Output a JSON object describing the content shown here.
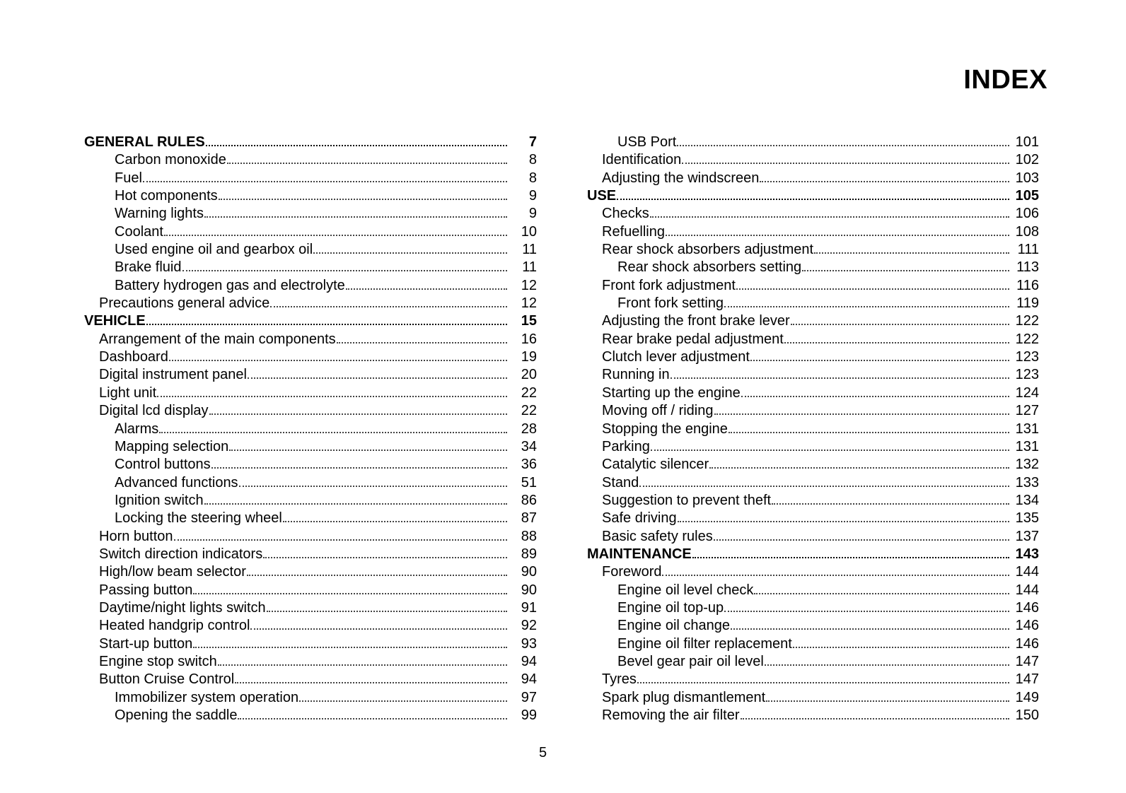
{
  "title": "INDEX",
  "page_number": "5",
  "left": [
    {
      "level": 0,
      "label": "GENERAL RULES",
      "page": "7"
    },
    {
      "level": 2,
      "label": "Carbon monoxide",
      "page": "8"
    },
    {
      "level": 2,
      "label": "Fuel",
      "page": "8"
    },
    {
      "level": 2,
      "label": "Hot components",
      "page": "9"
    },
    {
      "level": 2,
      "label": "Warning lights",
      "page": "9"
    },
    {
      "level": 2,
      "label": "Coolant",
      "page": "10"
    },
    {
      "level": 2,
      "label": "Used engine oil and gearbox oil",
      "page": "11"
    },
    {
      "level": 2,
      "label": "Brake fluid",
      "page": "11"
    },
    {
      "level": 2,
      "label": "Battery hydrogen gas and electrolyte",
      "page": "12"
    },
    {
      "level": 1,
      "label": "Precautions general advice",
      "page": "12"
    },
    {
      "level": 0,
      "label": "VEHICLE",
      "page": "15"
    },
    {
      "level": 1,
      "label": "Arrangement of the main components",
      "page": "16"
    },
    {
      "level": 1,
      "label": "Dashboard",
      "page": "19"
    },
    {
      "level": 1,
      "label": "Digital instrument panel",
      "page": "20"
    },
    {
      "level": 1,
      "label": "Light unit",
      "page": "22"
    },
    {
      "level": 1,
      "label": "Digital lcd display",
      "page": "22"
    },
    {
      "level": 2,
      "label": "Alarms",
      "page": "28"
    },
    {
      "level": 2,
      "label": "Mapping selection",
      "page": "34"
    },
    {
      "level": 2,
      "label": "Control buttons",
      "page": "36"
    },
    {
      "level": 2,
      "label": "Advanced functions",
      "page": "51"
    },
    {
      "level": 2,
      "label": "Ignition switch",
      "page": "86"
    },
    {
      "level": 2,
      "label": "Locking the steering wheel",
      "page": "87"
    },
    {
      "level": 1,
      "label": "Horn button",
      "page": "88"
    },
    {
      "level": 1,
      "label": "Switch direction indicators",
      "page": "89"
    },
    {
      "level": 1,
      "label": "High/low beam selector",
      "page": "90"
    },
    {
      "level": 1,
      "label": "Passing button",
      "page": "90"
    },
    {
      "level": 1,
      "label": "Daytime/night lights switch",
      "page": "91"
    },
    {
      "level": 1,
      "label": "Heated handgrip control",
      "page": "92"
    },
    {
      "level": 1,
      "label": "Start-up button",
      "page": "93"
    },
    {
      "level": 1,
      "label": "Engine stop switch",
      "page": "94"
    },
    {
      "level": 1,
      "label": "Button Cruise Control",
      "page": "94"
    },
    {
      "level": 2,
      "label": "Immobilizer system operation",
      "page": "97"
    },
    {
      "level": 2,
      "label": "Opening the saddle",
      "page": "99"
    }
  ],
  "right": [
    {
      "level": 2,
      "label": "USB Port",
      "page": "101"
    },
    {
      "level": 1,
      "label": "Identification",
      "page": "102"
    },
    {
      "level": 1,
      "label": "Adjusting the windscreen",
      "page": "103"
    },
    {
      "level": 0,
      "label": "USE",
      "page": "105"
    },
    {
      "level": 1,
      "label": "Checks",
      "page": "106"
    },
    {
      "level": 1,
      "label": "Refuelling",
      "page": "108"
    },
    {
      "level": 1,
      "label": "Rear shock absorbers adjustment",
      "page": "111"
    },
    {
      "level": 2,
      "label": "Rear shock absorbers setting",
      "page": "113"
    },
    {
      "level": 1,
      "label": "Front fork adjustment",
      "page": "116"
    },
    {
      "level": 2,
      "label": "Front fork setting",
      "page": "119"
    },
    {
      "level": 1,
      "label": "Adjusting the front brake lever",
      "page": "122"
    },
    {
      "level": 1,
      "label": "Rear brake pedal adjustment",
      "page": "122"
    },
    {
      "level": 1,
      "label": "Clutch lever adjustment",
      "page": "123"
    },
    {
      "level": 1,
      "label": "Running in",
      "page": "123"
    },
    {
      "level": 1,
      "label": "Starting up the engine",
      "page": "124"
    },
    {
      "level": 1,
      "label": "Moving off / riding",
      "page": "127"
    },
    {
      "level": 1,
      "label": "Stopping the engine",
      "page": "131"
    },
    {
      "level": 1,
      "label": "Parking",
      "page": "131"
    },
    {
      "level": 1,
      "label": "Catalytic silencer",
      "page": "132"
    },
    {
      "level": 1,
      "label": "Stand",
      "page": "133"
    },
    {
      "level": 1,
      "label": "Suggestion to prevent theft",
      "page": "134"
    },
    {
      "level": 1,
      "label": "Safe driving",
      "page": "135"
    },
    {
      "level": 1,
      "label": "Basic safety rules",
      "page": "137"
    },
    {
      "level": 0,
      "label": "MAINTENANCE",
      "page": "143"
    },
    {
      "level": 1,
      "label": "Foreword",
      "page": "144"
    },
    {
      "level": 2,
      "label": "Engine oil level check",
      "page": "144"
    },
    {
      "level": 2,
      "label": "Engine oil top-up",
      "page": "146"
    },
    {
      "level": 2,
      "label": "Engine oil change",
      "page": "146"
    },
    {
      "level": 2,
      "label": "Engine oil filter replacement",
      "page": "146"
    },
    {
      "level": 2,
      "label": "Bevel gear pair oil level",
      "page": "147"
    },
    {
      "level": 1,
      "label": "Tyres",
      "page": "147"
    },
    {
      "level": 1,
      "label": "Spark plug dismantlement",
      "page": "149"
    },
    {
      "level": 1,
      "label": "Removing the air filter",
      "page": "150"
    }
  ]
}
